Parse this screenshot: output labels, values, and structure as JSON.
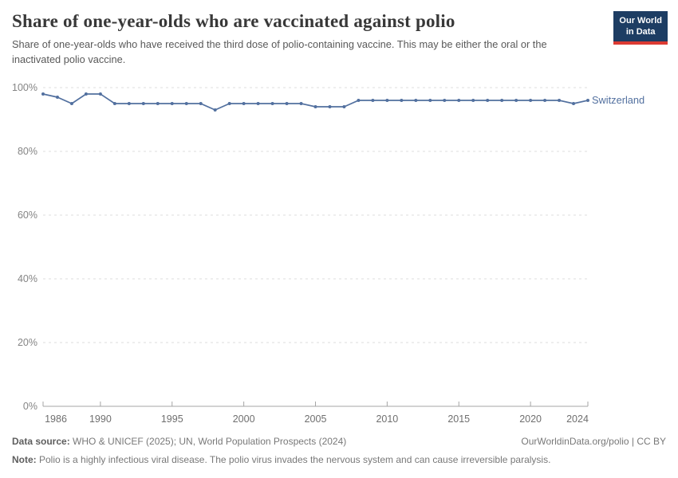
{
  "header": {
    "title": "Share of one-year-olds who are vaccinated against polio",
    "subtitle": "Share of one-year-olds who have received the third dose of polio-containing vaccine. This may be either the oral or the inactivated polio vaccine.",
    "logo": {
      "line1": "Our World",
      "line2": "in Data",
      "bg_color": "#1d3d63",
      "accent_color": "#dc3b33"
    }
  },
  "chart_data": {
    "type": "line",
    "title": "Share of one-year-olds who are vaccinated against polio",
    "xlabel": "",
    "ylabel": "",
    "xlim": [
      1986,
      2024
    ],
    "ylim": [
      0,
      100
    ],
    "grid": "horizontal-dashed",
    "legend_position": "end-of-line",
    "xticks": [
      1986,
      1990,
      1995,
      2000,
      2005,
      2010,
      2015,
      2020,
      2024
    ],
    "yticks": [
      {
        "value": 0,
        "label": "0%"
      },
      {
        "value": 20,
        "label": "20%"
      },
      {
        "value": 40,
        "label": "40%"
      },
      {
        "value": 60,
        "label": "60%"
      },
      {
        "value": 80,
        "label": "80%"
      },
      {
        "value": 100,
        "label": "100%"
      }
    ],
    "series": [
      {
        "name": "Switzerland",
        "color": "#52709f",
        "x": [
          1986,
          1987,
          1988,
          1989,
          1990,
          1991,
          1992,
          1993,
          1994,
          1995,
          1996,
          1997,
          1998,
          1999,
          2000,
          2001,
          2002,
          2003,
          2004,
          2005,
          2006,
          2007,
          2008,
          2009,
          2010,
          2011,
          2012,
          2013,
          2014,
          2015,
          2016,
          2017,
          2018,
          2019,
          2020,
          2021,
          2022,
          2023,
          2024
        ],
        "values": [
          98,
          97,
          95,
          98,
          98,
          95,
          95,
          95,
          95,
          95,
          95,
          95,
          93,
          95,
          95,
          95,
          95,
          95,
          95,
          94,
          94,
          94,
          96,
          96,
          96,
          96,
          96,
          96,
          96,
          96,
          96,
          96,
          96,
          96,
          96,
          96,
          96,
          95,
          96
        ]
      }
    ]
  },
  "footer": {
    "datasource_label": "Data source:",
    "datasource_value": " WHO & UNICEF (2025); UN, World Population Prospects (2024)",
    "link": "OurWorldinData.org/polio | CC BY",
    "note_label": "Note:",
    "note_value": " Polio is a highly infectious viral disease. The polio virus invades the nervous system and can cause irreversible paralysis."
  }
}
